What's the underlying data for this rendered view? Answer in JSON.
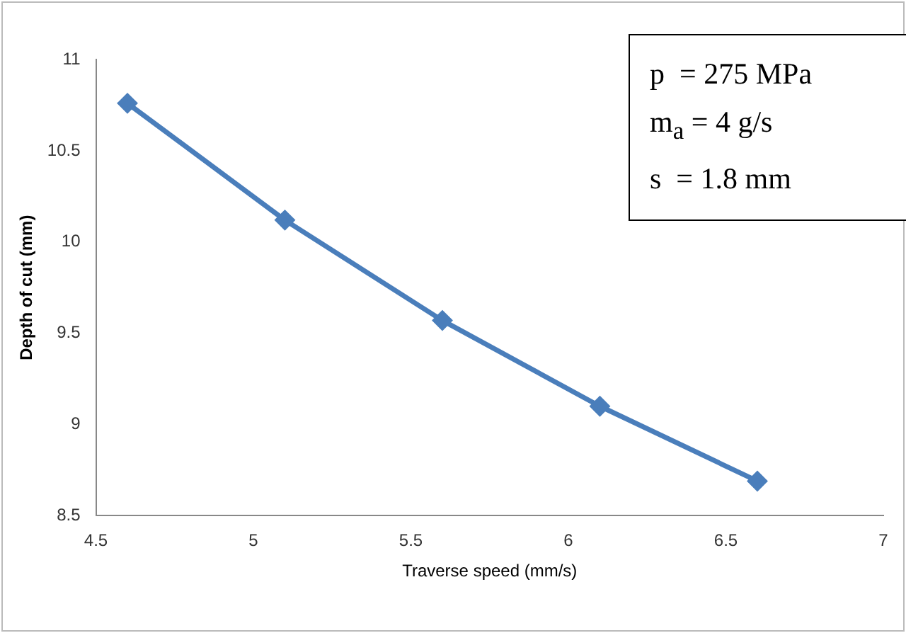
{
  "chart_data": {
    "type": "line",
    "xlabel": "Traverse speed (mm/s)",
    "ylabel": "Depth of cut (mm)",
    "x": [
      4.6,
      5.1,
      5.6,
      6.1,
      6.6
    ],
    "series": [
      {
        "color": "#4a7ebb",
        "values": [
          10.76,
          10.12,
          9.57,
          9.1,
          8.69
        ]
      }
    ],
    "xlim": [
      4.5,
      7
    ],
    "xticks": [
      4.5,
      5,
      5.5,
      6,
      6.5,
      7
    ],
    "ylim": [
      8.5,
      11
    ],
    "yticks": [
      8.5,
      9,
      9.5,
      10,
      10.5,
      11
    ],
    "annotations": [
      "p  = 275 MPa",
      "m$_{a}$ = 4 g/s",
      "s  = 1.8 mm"
    ],
    "grid": false,
    "legend": false,
    "marker": "diamond",
    "line_style": "solid"
  }
}
